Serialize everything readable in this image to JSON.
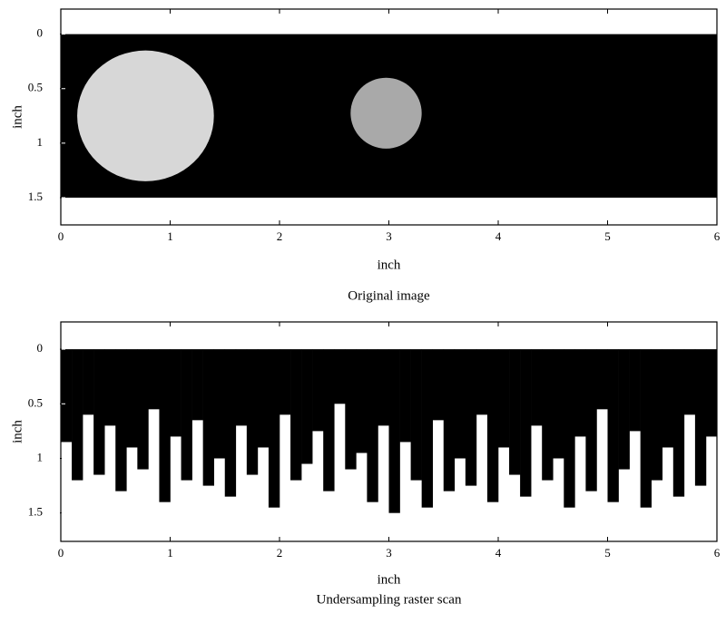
{
  "chart_data": [
    {
      "type": "image",
      "title": "Original image",
      "xlabel": "inch",
      "ylabel": "inch",
      "xlim": [
        0,
        6
      ],
      "ylim": [
        -0.23,
        1.75
      ],
      "y_inverted": true,
      "xticks": [
        0,
        1,
        2,
        3,
        4,
        5,
        6
      ],
      "yticks": [
        0,
        0.5,
        1,
        1.5
      ],
      "extent": {
        "x": [
          0,
          6
        ],
        "y": [
          0,
          1.5
        ]
      },
      "color": "#000000",
      "bright_regions": [
        {
          "x": [
            0.15,
            1.4
          ],
          "y": [
            0.15,
            1.35
          ],
          "color": "#eeeeee"
        },
        {
          "x": [
            2.65,
            3.3
          ],
          "y": [
            0.4,
            1.05
          ],
          "color": "#bbbbbb"
        }
      ]
    },
    {
      "type": "histogram",
      "title": "Undersampling raster scan",
      "xlabel": "inch",
      "ylabel": "inch",
      "xlim": [
        0,
        6
      ],
      "ylim": [
        -0.25,
        1.76
      ],
      "y_inverted": true,
      "xticks": [
        0,
        1,
        2,
        3,
        4,
        5,
        6
      ],
      "yticks": [
        0,
        0.5,
        1,
        1.5
      ],
      "color": "#000000",
      "bins": [
        0,
        0.1,
        0.2,
        0.3,
        0.4,
        0.5,
        0.6,
        0.7,
        0.8,
        0.9,
        1,
        1.1,
        1.2,
        1.3,
        1.4,
        1.5,
        1.6,
        1.7,
        1.8,
        1.9,
        2,
        2.1,
        2.2,
        2.3,
        2.4,
        2.5,
        2.6,
        2.7,
        2.8,
        2.9,
        3,
        3.1,
        3.2,
        3.3,
        3.4,
        3.5,
        3.6,
        3.7,
        3.8,
        3.9,
        4,
        4.1,
        4.2,
        4.3,
        4.4,
        4.5,
        4.6,
        4.7,
        4.8,
        4.9,
        5,
        5.1,
        5.2,
        5.3,
        5.4,
        5.5,
        5.6,
        5.7,
        5.8,
        5.9,
        6
      ],
      "values": [
        0.85,
        1.2,
        0.6,
        1.15,
        0.7,
        1.3,
        0.9,
        1.1,
        0.55,
        1.4,
        0.8,
        1.2,
        0.65,
        1.25,
        1.0,
        1.35,
        0.7,
        1.15,
        0.9,
        1.45,
        0.6,
        1.2,
        1.05,
        0.75,
        1.3,
        0.5,
        1.1,
        0.95,
        1.4,
        0.7,
        1.5,
        0.85,
        1.2,
        1.45,
        0.65,
        1.3,
        1.0,
        1.25,
        0.6,
        1.4,
        0.9,
        1.15,
        1.35,
        0.7,
        1.2,
        1.0,
        1.45,
        0.8,
        1.3,
        0.55,
        1.4,
        1.1,
        0.75,
        1.45,
        1.2,
        0.9,
        1.35,
        0.6,
        1.25,
        0.8
      ]
    }
  ]
}
